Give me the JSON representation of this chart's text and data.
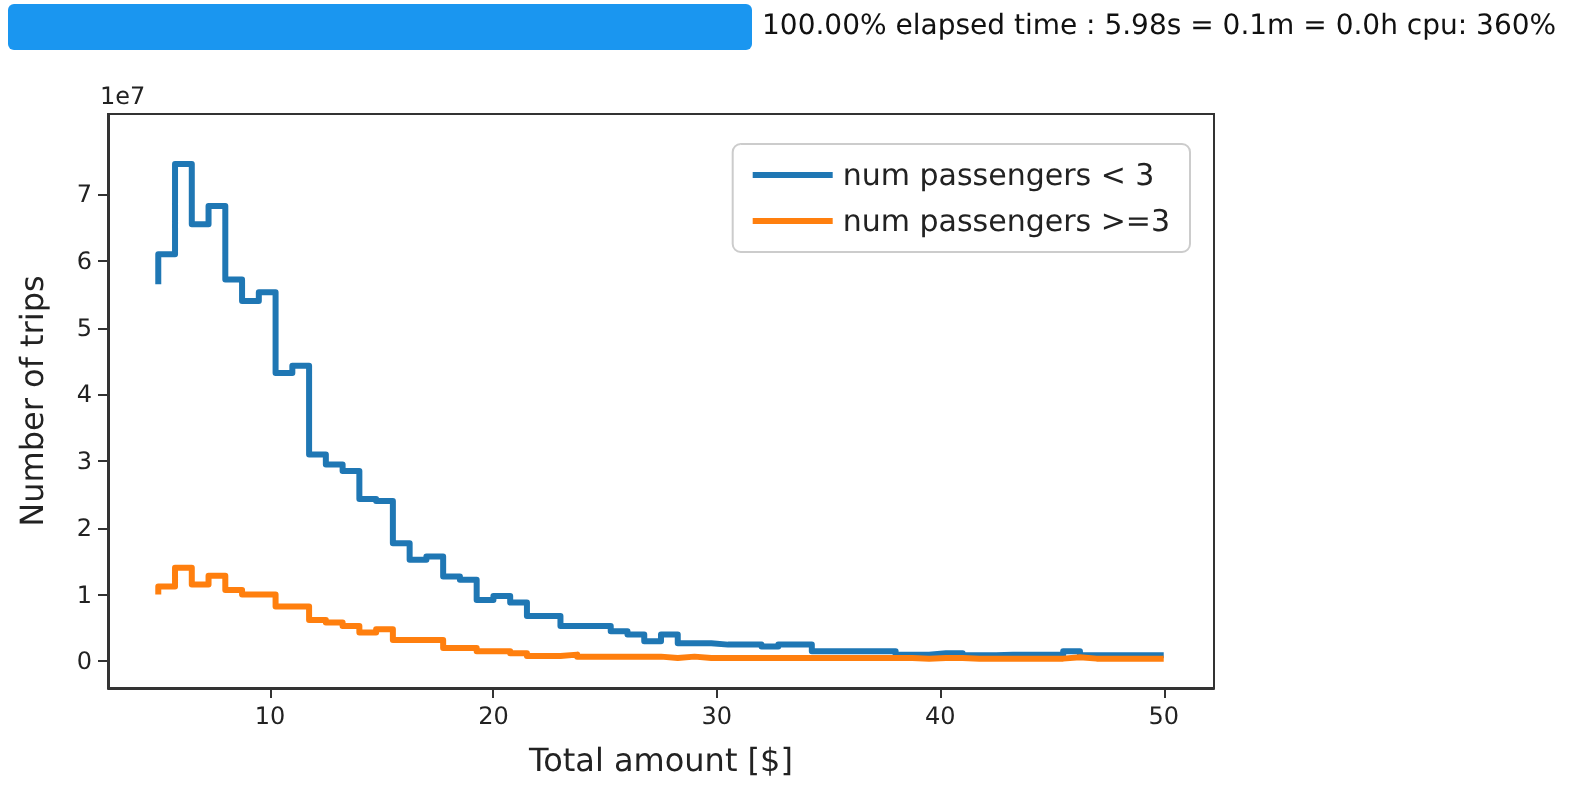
{
  "chart_data": {
    "type": "step",
    "xlabel": "Total amount [$]",
    "ylabel": "Number of trips",
    "annotations": [
      "100.00% elapsed time : 5.98s = 0.1m = 0.0h cpu: 360%",
      "1e7"
    ],
    "x": [
      5,
      5.75,
      6.5,
      7.25,
      8,
      8.75,
      9.5,
      10.25,
      11,
      11.75,
      12.5,
      13.25,
      14,
      14.75,
      15.5,
      16.25,
      17,
      17.75,
      18.5,
      19.25,
      20,
      20.75,
      21.5,
      22.25,
      23,
      23.75,
      24.5,
      25.25,
      26,
      26.75,
      27.5,
      28.25,
      29,
      29.75,
      30.5,
      31.25,
      32,
      32.75,
      33.5,
      34.25,
      35,
      35.75,
      36.5,
      37.25,
      38,
      38.75,
      39.5,
      40.25,
      41,
      41.75,
      42.5,
      43.25,
      44,
      44.75,
      45.5,
      46.25,
      47,
      47.75,
      48.5,
      49.25,
      50
    ],
    "series": [
      {
        "name": "num passengers < 3",
        "color": "#1f77b4",
        "values": [
          5.65,
          6.1,
          7.45,
          6.55,
          6.82,
          5.72,
          5.4,
          5.53,
          4.32,
          4.43,
          3.1,
          2.95,
          2.85,
          2.43,
          2.4,
          1.77,
          1.52,
          1.57,
          1.27,
          1.22,
          0.92,
          0.98,
          0.88,
          0.68,
          0.68,
          0.53,
          0.53,
          0.53,
          0.45,
          0.4,
          0.3,
          0.4,
          0.27,
          0.27,
          0.25,
          0.25,
          0.25,
          0.22,
          0.25,
          0.25,
          0.15,
          0.15,
          0.15,
          0.15,
          0.15,
          0.1,
          0.1,
          0.12,
          0.12,
          0.09,
          0.09,
          0.1,
          0.1,
          0.1,
          0.1,
          0.15,
          0.09,
          0.09,
          0.09,
          0.09,
          0.09
        ]
      },
      {
        "name": "num passengers >=3",
        "color": "#ff7f0e",
        "values": [
          1.0,
          1.12,
          1.4,
          1.15,
          1.28,
          1.07,
          1.0,
          1.0,
          0.82,
          0.82,
          0.62,
          0.58,
          0.53,
          0.43,
          0.48,
          0.32,
          0.32,
          0.32,
          0.2,
          0.2,
          0.15,
          0.15,
          0.12,
          0.08,
          0.08,
          0.1,
          0.07,
          0.07,
          0.07,
          0.07,
          0.07,
          0.05,
          0.07,
          0.05,
          0.05,
          0.05,
          0.05,
          0.05,
          0.05,
          0.05,
          0.05,
          0.05,
          0.05,
          0.05,
          0.05,
          0.05,
          0.04,
          0.05,
          0.05,
          0.04,
          0.04,
          0.04,
          0.04,
          0.04,
          0.04,
          0.06,
          0.04,
          0.04,
          0.04,
          0.04,
          0.04
        ]
      }
    ],
    "xlim": [
      2.75,
      52.25
    ],
    "xticks": [
      10,
      20,
      30,
      40,
      50
    ],
    "ylim": [
      -0.4,
      8.2
    ],
    "yticks": [
      0,
      1,
      2,
      3,
      4,
      5,
      6,
      7
    ],
    "grid": false,
    "legend": "top right",
    "marker": "none",
    "line_style": "solid"
  }
}
